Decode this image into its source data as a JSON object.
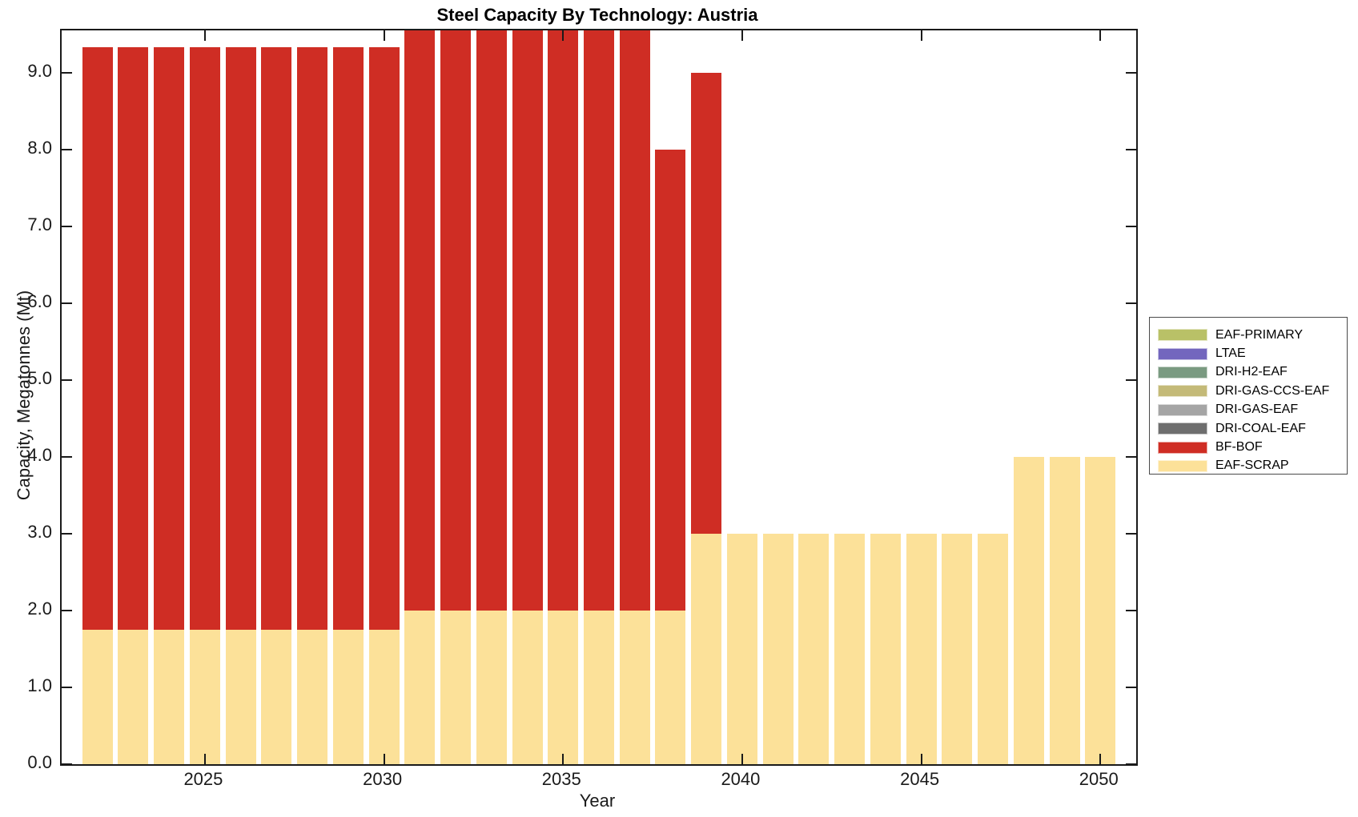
{
  "title": "Steel Capacity By Technology: Austria",
  "chart_data": {
    "type": "bar",
    "stacked": true,
    "title": "Steel Capacity By Technology: Austria",
    "xlabel": "Year",
    "ylabel": "Capacity, Megatonnes (Mt)",
    "xlim": [
      2021,
      2051
    ],
    "ylim": [
      0,
      9.55
    ],
    "grid": false,
    "x_ticks": [
      2025,
      2030,
      2035,
      2040,
      2045,
      2050
    ],
    "y_ticks": [
      0,
      1,
      2,
      3,
      4,
      5,
      6,
      7,
      8,
      9
    ],
    "y_tick_labels": [
      "0.0",
      "1.0",
      "2.0",
      "3.0",
      "4.0",
      "5.0",
      "6.0",
      "7.0",
      "8.0",
      "9.0"
    ],
    "categories": [
      2022,
      2023,
      2024,
      2025,
      2026,
      2027,
      2028,
      2029,
      2030,
      2031,
      2032,
      2033,
      2034,
      2035,
      2036,
      2037,
      2038,
      2039,
      2040,
      2041,
      2042,
      2043,
      2044,
      2045,
      2046,
      2047,
      2048,
      2049,
      2050
    ],
    "series": [
      {
        "name": "EAF-SCRAP",
        "color": "#fce199",
        "values": [
          1.75,
          1.75,
          1.75,
          1.75,
          1.75,
          1.75,
          1.75,
          1.75,
          1.75,
          2.0,
          2.0,
          2.0,
          2.0,
          2.0,
          2.0,
          2.0,
          2.0,
          3.0,
          3.0,
          3.0,
          3.0,
          3.0,
          3.0,
          3.0,
          3.0,
          3.0,
          4.0,
          4.0,
          4.0
        ]
      },
      {
        "name": "BF-BOF",
        "color": "#cf2d24",
        "values": [
          7.58,
          7.58,
          7.58,
          7.58,
          7.58,
          7.58,
          7.58,
          7.58,
          7.58,
          7.58,
          7.58,
          7.58,
          7.58,
          7.58,
          7.58,
          7.58,
          6.0,
          6.0,
          0,
          0,
          0,
          0,
          0,
          0,
          0,
          0,
          0,
          0,
          0
        ]
      },
      {
        "name": "DRI-COAL-EAF",
        "color": "#6e6e6e",
        "values": [
          0,
          0,
          0,
          0,
          0,
          0,
          0,
          0,
          0,
          0,
          0,
          0,
          0,
          0,
          0,
          0,
          0,
          0,
          0,
          0,
          0,
          0,
          0,
          0,
          0,
          0,
          0,
          0,
          0
        ]
      },
      {
        "name": "DRI-GAS-EAF",
        "color": "#a5a5a5",
        "values": [
          0,
          0,
          0,
          0,
          0,
          0,
          0,
          0,
          0,
          0,
          0,
          0,
          0,
          0,
          0,
          0,
          0,
          0,
          0,
          0,
          0,
          0,
          0,
          0,
          0,
          0,
          0,
          0,
          0
        ]
      },
      {
        "name": "DRI-GAS-CCS-EAF",
        "color": "#c4ba78",
        "values": [
          0,
          0,
          0,
          0,
          0,
          0,
          0,
          0,
          0,
          0,
          0,
          0,
          0,
          0,
          0,
          0,
          0,
          0,
          0,
          0,
          0,
          0,
          0,
          0,
          0,
          0,
          0,
          0,
          0
        ]
      },
      {
        "name": "DRI-H2-EAF",
        "color": "#7a9a81",
        "values": [
          0,
          0,
          0,
          0,
          0,
          0,
          0,
          0,
          0,
          0,
          0,
          0,
          0,
          0,
          0,
          0,
          0,
          0,
          0,
          0,
          0,
          0,
          0,
          0,
          0,
          0,
          0,
          0,
          0
        ]
      },
      {
        "name": "LTAE",
        "color": "#7366be",
        "values": [
          0,
          0,
          0,
          0,
          0,
          0,
          0,
          0,
          0,
          0,
          0,
          0,
          0,
          0,
          0,
          0,
          0,
          0,
          0,
          0,
          0,
          0,
          0,
          0,
          0,
          0,
          0,
          0,
          0
        ]
      },
      {
        "name": "EAF-PRIMARY",
        "color": "#b9c167",
        "values": [
          0,
          0,
          0,
          0,
          0,
          0,
          0,
          0,
          0,
          0,
          0,
          0,
          0,
          0,
          0,
          0,
          0,
          0,
          0,
          0,
          0,
          0,
          0,
          0,
          0,
          0,
          0,
          0,
          0
        ]
      }
    ],
    "legend": {
      "position": "right-outside",
      "entries": [
        {
          "label": "EAF-PRIMARY",
          "color": "#b9c167"
        },
        {
          "label": "LTAE",
          "color": "#7366be"
        },
        {
          "label": "DRI-H2-EAF",
          "color": "#7a9a81"
        },
        {
          "label": "DRI-GAS-CCS-EAF",
          "color": "#c4ba78"
        },
        {
          "label": "DRI-GAS-EAF",
          "color": "#a5a5a5"
        },
        {
          "label": "DRI-COAL-EAF",
          "color": "#6e6e6e"
        },
        {
          "label": "BF-BOF",
          "color": "#cf2d24"
        },
        {
          "label": "EAF-SCRAP",
          "color": "#fce199"
        }
      ]
    }
  }
}
